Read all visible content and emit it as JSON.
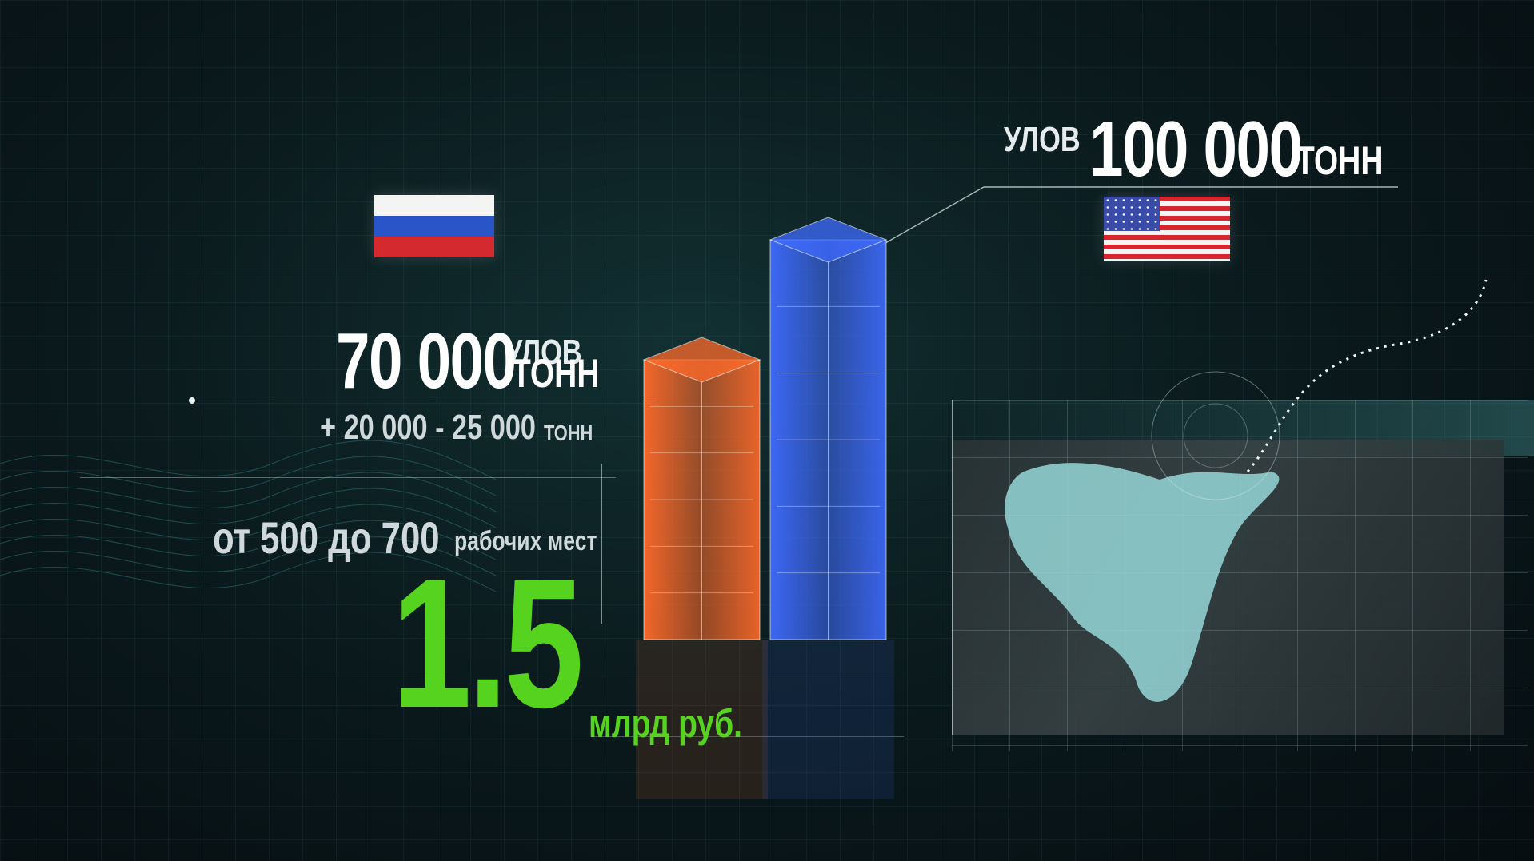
{
  "chart_data": {
    "type": "bar",
    "categories": [
      "Россия",
      "США"
    ],
    "values": [
      70000,
      100000
    ],
    "ylim": [
      0,
      100000
    ],
    "colors": [
      "#ff6a2a",
      "#3f6bff"
    ],
    "annotations": {
      "russia": {
        "prefix": "УЛОВ",
        "value": "70 000",
        "unit": "ТОНН",
        "extra_value": "+ 20 000 - 25 000",
        "extra_unit": "ТОНН"
      },
      "usa": {
        "prefix": "УЛОВ",
        "value": "100 000",
        "unit": "ТОНН"
      },
      "jobs": {
        "text": "от 500 до 700",
        "unit": "рабочих мест"
      },
      "money": {
        "value": "1.5",
        "unit": "млрд  руб."
      }
    }
  },
  "icons": {
    "russia_flag": "russian-flag-icon",
    "usa_flag": "us-flag-icon"
  }
}
